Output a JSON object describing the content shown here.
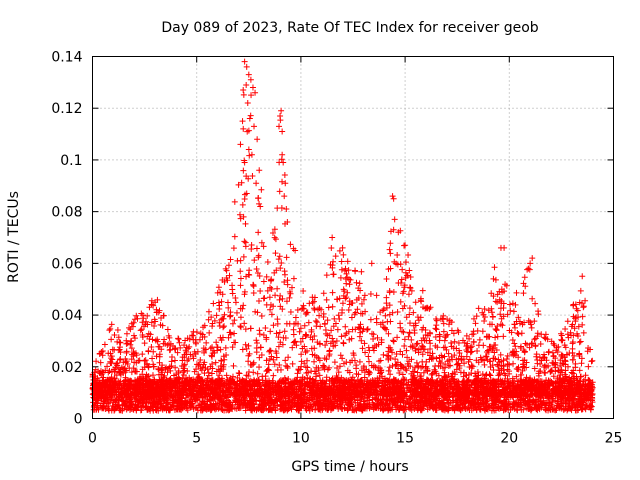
{
  "chart_data": {
    "type": "scatter",
    "title": "Day 089 of 2023, Rate Of TEC Index for receiver geob",
    "xlabel": "GPS time / hours",
    "ylabel": "ROTI / TECUs",
    "xlim": [
      0,
      25
    ],
    "ylim": [
      0,
      0.14
    ],
    "x_ticks": [
      "0",
      "5",
      "10",
      "15",
      "20",
      "25"
    ],
    "y_ticks": [
      "0",
      "0.02",
      "0.04",
      "0.06",
      "0.08",
      "0.1",
      "0.12",
      "0.14"
    ],
    "grid": true,
    "legend": "none",
    "marker": "+",
    "color": "#ff0000",
    "x_range_of_data": [
      0,
      24
    ],
    "baseline_band": [
      0.003,
      0.015
    ],
    "envelope": {
      "x": [
        0,
        0.5,
        1,
        1.5,
        2,
        2.5,
        3,
        3.5,
        4,
        4.5,
        5,
        5.5,
        6,
        6.5,
        7,
        7.3,
        7.6,
        8,
        8.5,
        9,
        9.5,
        10,
        10.5,
        11,
        11.5,
        12,
        12.5,
        13,
        13.5,
        14,
        14.5,
        15,
        15.5,
        16,
        16.5,
        17,
        17.5,
        18,
        18.5,
        19,
        19.5,
        20,
        20.5,
        21,
        21.5,
        22,
        22.5,
        23,
        23.5,
        24
      ],
      "y_max": [
        0.02,
        0.028,
        0.038,
        0.03,
        0.04,
        0.043,
        0.05,
        0.04,
        0.032,
        0.03,
        0.038,
        0.042,
        0.05,
        0.062,
        0.1,
        0.138,
        0.133,
        0.098,
        0.055,
        0.118,
        0.078,
        0.05,
        0.048,
        0.045,
        0.07,
        0.065,
        0.058,
        0.06,
        0.055,
        0.048,
        0.086,
        0.067,
        0.058,
        0.048,
        0.04,
        0.04,
        0.035,
        0.032,
        0.043,
        0.05,
        0.066,
        0.048,
        0.05,
        0.062,
        0.04,
        0.03,
        0.033,
        0.043,
        0.055,
        0.022
      ]
    },
    "outliers": [
      {
        "x": 7.3,
        "y": 0.138
      },
      {
        "x": 7.4,
        "y": 0.136
      },
      {
        "x": 7.5,
        "y": 0.133
      },
      {
        "x": 7.6,
        "y": 0.131
      },
      {
        "x": 7.7,
        "y": 0.128
      },
      {
        "x": 7.8,
        "y": 0.126
      },
      {
        "x": 7.45,
        "y": 0.122
      },
      {
        "x": 7.55,
        "y": 0.116
      },
      {
        "x": 7.2,
        "y": 0.115
      },
      {
        "x": 7.75,
        "y": 0.113
      },
      {
        "x": 7.9,
        "y": 0.108
      },
      {
        "x": 7.1,
        "y": 0.106
      },
      {
        "x": 7.65,
        "y": 0.102
      },
      {
        "x": 7.3,
        "y": 0.099
      },
      {
        "x": 8.0,
        "y": 0.096
      },
      {
        "x": 7.85,
        "y": 0.091
      },
      {
        "x": 7.4,
        "y": 0.087
      },
      {
        "x": 8.05,
        "y": 0.082
      },
      {
        "x": 7.25,
        "y": 0.078
      },
      {
        "x": 7.95,
        "y": 0.072
      },
      {
        "x": 7.35,
        "y": 0.068
      },
      {
        "x": 9.05,
        "y": 0.119
      },
      {
        "x": 9.0,
        "y": 0.117
      },
      {
        "x": 8.95,
        "y": 0.113
      },
      {
        "x": 9.1,
        "y": 0.111
      },
      {
        "x": 9.1,
        "y": 0.102
      },
      {
        "x": 9.15,
        "y": 0.099
      },
      {
        "x": 9.25,
        "y": 0.091
      },
      {
        "x": 9.2,
        "y": 0.086
      },
      {
        "x": 9.3,
        "y": 0.081
      },
      {
        "x": 9.35,
        "y": 0.076
      },
      {
        "x": 14.4,
        "y": 0.086
      },
      {
        "x": 14.45,
        "y": 0.085
      },
      {
        "x": 14.5,
        "y": 0.077
      },
      {
        "x": 14.45,
        "y": 0.073
      },
      {
        "x": 15.0,
        "y": 0.067
      },
      {
        "x": 19.6,
        "y": 0.066
      },
      {
        "x": 19.75,
        "y": 0.066
      },
      {
        "x": 21.1,
        "y": 0.062
      },
      {
        "x": 21.0,
        "y": 0.06
      },
      {
        "x": 23.5,
        "y": 0.055
      },
      {
        "x": 11.5,
        "y": 0.07
      },
      {
        "x": 12.0,
        "y": 0.066
      },
      {
        "x": 13.4,
        "y": 0.06
      },
      {
        "x": 14.3,
        "y": 0.058
      }
    ]
  }
}
